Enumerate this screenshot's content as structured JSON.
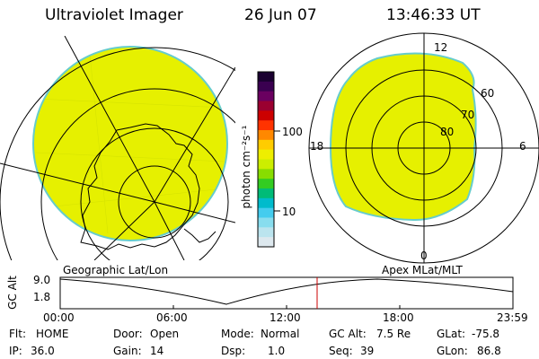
{
  "header": {
    "instrument": "Ultraviolet Imager",
    "date": "26 Jun 07",
    "time": "13:46:33 UT"
  },
  "colorbar": {
    "unit_label": "photon cm⁻²s⁻¹",
    "ticks": [
      "100",
      "10"
    ],
    "colors": [
      "#1a0030",
      "#3a0050",
      "#6a0060",
      "#9a0030",
      "#cc0000",
      "#ff3300",
      "#ff8800",
      "#ffcc00",
      "#eeee00",
      "#ccee00",
      "#88dd00",
      "#33cc22",
      "#00bb77",
      "#00bbcc",
      "#44ccee",
      "#88ddee",
      "#bbe4ee",
      "#dde8ee"
    ]
  },
  "left_map": {
    "label": "Geographic Lat/Lon",
    "fill_color": "#e6f000",
    "edge_color": "#66cccc"
  },
  "right_map": {
    "label": "Apex MLat/MLT",
    "mlt_labels": [
      "12",
      "18",
      "6",
      "0"
    ],
    "lat_labels": [
      "60",
      "70",
      "80"
    ],
    "fill_color": "#e6f000",
    "edge_color": "#66cccc"
  },
  "orbit_plot": {
    "ylabel": "GC Alt",
    "yticks": [
      "9.0",
      "1.8"
    ],
    "xticks": [
      "00:00",
      "06:00",
      "12:00",
      "18:00",
      "23:59"
    ],
    "marker_color": "#cc0000"
  },
  "status": {
    "flt_label": "Flt:",
    "flt_value": "HOME",
    "ip_label": "IP:",
    "ip_value": "36.0",
    "door_label": "Door:",
    "door_value": "Open",
    "gain_label": "Gain:",
    "gain_value": "14",
    "mode_label": "Mode:",
    "mode_value": "Normal",
    "dsp_label": "Dsp:",
    "dsp_value": "1.0",
    "gcalt_label": "GC Alt:",
    "gcalt_value": "7.5 Re",
    "seq_label": "Seq:",
    "seq_value": "39",
    "glat_label": "GLat:",
    "glat_value": "-75.8",
    "glon_label": "GLon:",
    "glon_value": "86.8"
  }
}
